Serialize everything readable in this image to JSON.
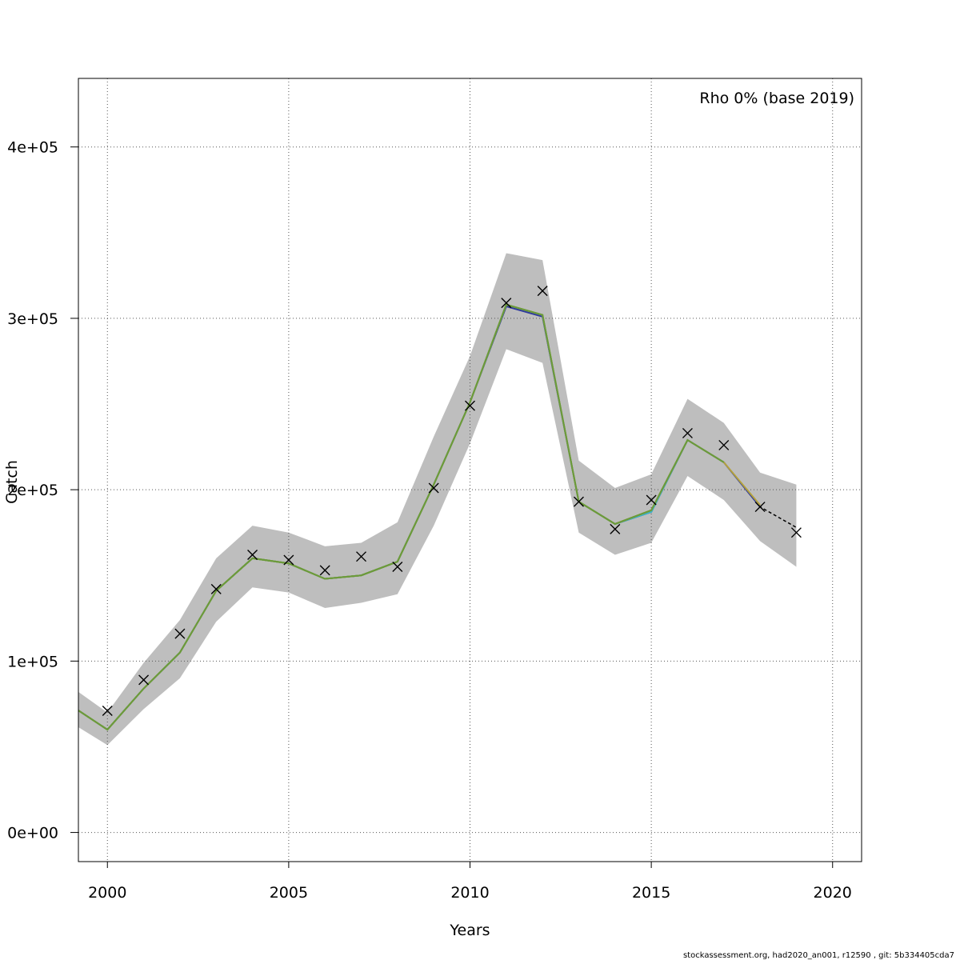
{
  "chart_data": {
    "type": "line",
    "title": "",
    "xlabel": "Years",
    "ylabel": "Catch",
    "annotation": "Rho 0% (base 2019)",
    "footer": "stockassessment.org, had2020_an001, r12590 , git: 5b334405cda7",
    "xlim": [
      1999.2,
      2020.8
    ],
    "ylim": [
      -17000,
      440000
    ],
    "x_ticks": [
      2000,
      2005,
      2010,
      2015,
      2020
    ],
    "x_tick_labels": [
      "2000",
      "2005",
      "2010",
      "2015",
      "2020"
    ],
    "y_ticks": [
      0,
      100000,
      200000,
      300000,
      400000
    ],
    "y_tick_labels": [
      "0e+00",
      "1e+05",
      "2e+05",
      "3e+05",
      "4e+05"
    ],
    "grid": true,
    "band": {
      "x": [
        1999,
        2000,
        2001,
        2002,
        2003,
        2004,
        2005,
        2006,
        2007,
        2008,
        2009,
        2010,
        2011,
        2012,
        2013,
        2014,
        2015,
        2016,
        2017,
        2018,
        2019
      ],
      "upper": [
        85000,
        70000,
        99000,
        124000,
        160000,
        179000,
        175000,
        167000,
        169000,
        181000,
        231000,
        278000,
        338000,
        334000,
        217000,
        201000,
        209000,
        253000,
        239000,
        210000,
        203000
      ],
      "lower": [
        64000,
        51000,
        72000,
        90000,
        123000,
        143000,
        140000,
        131000,
        134000,
        139000,
        179000,
        227000,
        282000,
        274000,
        175000,
        162000,
        169000,
        208000,
        194000,
        170000,
        155000
      ],
      "color": "#bebebe"
    },
    "series": [
      {
        "color": "#000000",
        "dash": true,
        "x": [
          1999,
          2000,
          2001,
          2002,
          2003,
          2004,
          2005,
          2006,
          2007,
          2008,
          2009,
          2010,
          2011,
          2012,
          2013,
          2014,
          2015,
          2016,
          2017,
          2018,
          2019
        ],
        "values": [
          74000,
          60000,
          84000,
          105000,
          141000,
          160000,
          157000,
          148000,
          150000,
          158000,
          203000,
          251000,
          308000,
          302000,
          193000,
          180000,
          188000,
          229000,
          216000,
          190000,
          178000
        ]
      },
      {
        "color": "#2f3b9c",
        "dash": false,
        "x": [
          1999,
          2000,
          2001,
          2002,
          2003,
          2004,
          2005,
          2006,
          2007,
          2008,
          2009,
          2010,
          2011,
          2012,
          2013,
          2014,
          2015,
          2016,
          2017,
          2018
        ],
        "values": [
          74000,
          60000,
          84000,
          105000,
          141000,
          160000,
          157000,
          148000,
          150000,
          158000,
          203000,
          251000,
          307000,
          301000,
          193000,
          180000,
          187000,
          229000,
          216000,
          190000
        ]
      },
      {
        "color": "#39b5c9",
        "dash": false,
        "x": [
          1999,
          2000,
          2001,
          2002,
          2003,
          2004,
          2005,
          2006,
          2007,
          2008,
          2009,
          2010,
          2011,
          2012,
          2013,
          2014,
          2015,
          2016,
          2017
        ],
        "values": [
          74000,
          60000,
          84000,
          105000,
          141000,
          160000,
          157000,
          148000,
          150000,
          158000,
          203000,
          251000,
          308000,
          302000,
          193000,
          180000,
          187000,
          229000,
          216000
        ]
      },
      {
        "color": "#4daf4a",
        "dash": false,
        "x": [
          1999,
          2000,
          2001,
          2002,
          2003,
          2004,
          2005,
          2006,
          2007,
          2008,
          2009,
          2010,
          2011,
          2012,
          2013,
          2014,
          2015,
          2016
        ],
        "values": [
          74000,
          60000,
          84000,
          105000,
          141000,
          160000,
          157000,
          148000,
          150000,
          158000,
          203000,
          251000,
          308000,
          302000,
          193000,
          180000,
          188000,
          229000
        ]
      },
      {
        "color": "#b5a23b",
        "dash": false,
        "x": [
          1999,
          2000,
          2001,
          2002,
          2003,
          2004,
          2005,
          2006,
          2007,
          2008,
          2009,
          2010,
          2011,
          2012,
          2013,
          2014,
          2015,
          2016,
          2017,
          2018
        ],
        "values": [
          74000,
          60000,
          84000,
          105000,
          141000,
          160000,
          157000,
          148000,
          150000,
          158000,
          203000,
          251000,
          308000,
          302000,
          193000,
          180000,
          188000,
          229000,
          216000,
          191000
        ]
      },
      {
        "color": "#6b9a3a",
        "dash": false,
        "x": [
          1999,
          2000,
          2001,
          2002,
          2003,
          2004,
          2005,
          2006,
          2007,
          2008,
          2009,
          2010,
          2011,
          2012,
          2013,
          2014,
          2015,
          2016,
          2017
        ],
        "values": [
          74000,
          60000,
          84000,
          105000,
          141000,
          160000,
          157000,
          148000,
          150000,
          158000,
          203000,
          251000,
          308000,
          302000,
          193000,
          180000,
          188000,
          229000,
          216000
        ]
      }
    ],
    "observations": {
      "x": [
        2000,
        2001,
        2002,
        2003,
        2004,
        2005,
        2006,
        2007,
        2008,
        2009,
        2010,
        2011,
        2012,
        2013,
        2014,
        2015,
        2016,
        2017,
        2018,
        2019
      ],
      "values": [
        71000,
        89000,
        116000,
        142000,
        162000,
        159000,
        153000,
        161000,
        155000,
        201000,
        249000,
        309000,
        316000,
        193000,
        177000,
        194000,
        233000,
        226000,
        190000,
        175000
      ]
    }
  }
}
